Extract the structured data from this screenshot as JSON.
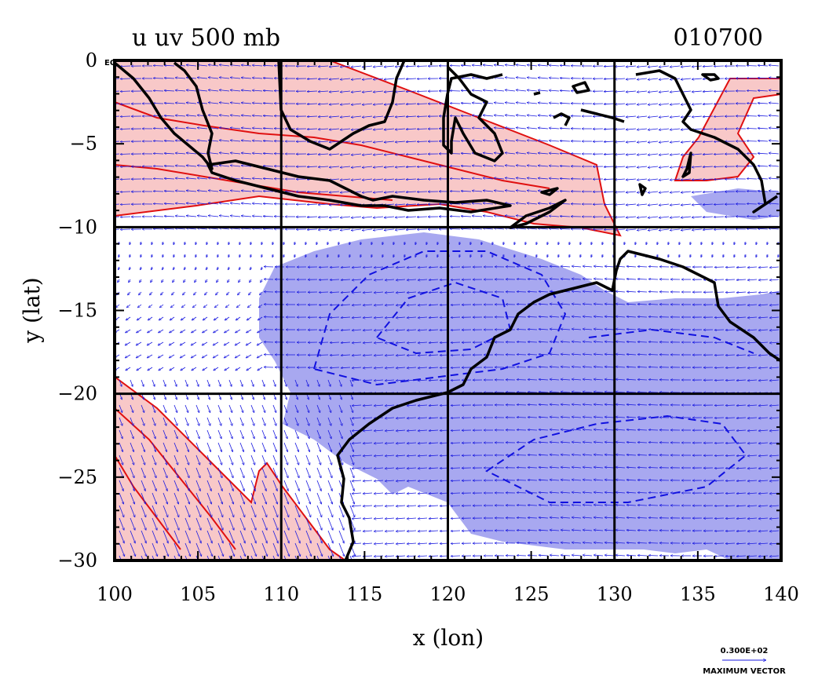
{
  "title_left": "u uv 500 mb",
  "title_right": "010700",
  "eq_label": "EQ",
  "x_axis": {
    "label": "x (lon)",
    "min": 100,
    "max": 140,
    "ticks": [
      "100",
      "105",
      "110",
      "115",
      "120",
      "125",
      "130",
      "135",
      "140"
    ]
  },
  "y_axis": {
    "label": "y (lat)",
    "min": -30,
    "max": 0,
    "ticks": [
      "0",
      "−5",
      "−10",
      "−15",
      "−20",
      "−25",
      "−30"
    ]
  },
  "grid_lines": {
    "lon": [
      110,
      120,
      130
    ],
    "lat": [
      -10,
      -20
    ]
  },
  "legend": {
    "value": "0.300E+02",
    "label": "MAXIMUM VECTOR"
  },
  "colors": {
    "positive_fill": "#f8c8c8",
    "positive_line": "#e01010",
    "negative_fill": "#a8a8f0",
    "negative_line": "#1010e0",
    "coast": "#000000",
    "vector": "#1a1ae0"
  }
}
